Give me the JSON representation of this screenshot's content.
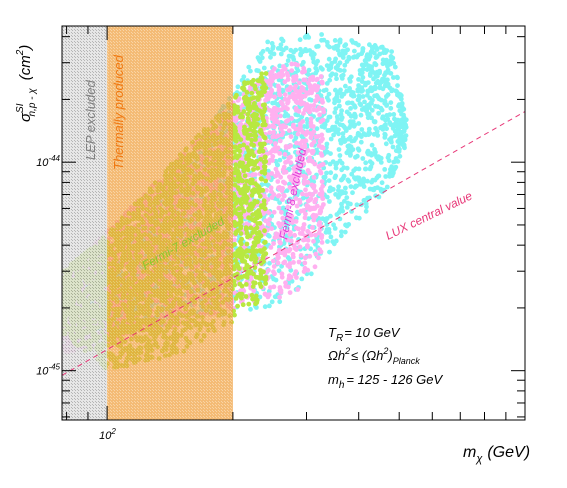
{
  "chart_data": {
    "type": "scatter",
    "title": "",
    "xscale": "log",
    "yscale": "log",
    "xlim": [
      78,
      1000
    ],
    "ylim": [
      5.8e-46,
      4.5e-44
    ],
    "xlabel_main": "m",
    "xlabel_sub": "χ",
    "xlabel_unit": "(GeV)",
    "ylabel_main": "σ",
    "ylabel_sup": "SI",
    "ylabel_sub": "n,p - χ",
    "ylabel_unit": "(cm",
    "ylabel_unit_sup": "2",
    "ylabel_unit_close": ")",
    "x_tick_labels": [
      {
        "value": 100,
        "base": "10",
        "exp": "2"
      }
    ],
    "y_tick_labels": [
      {
        "value": 1e-44,
        "base": "10",
        "exp": "-44"
      },
      {
        "value": 1e-45,
        "base": "10",
        "exp": "-45"
      }
    ],
    "regions": [
      {
        "name": "LEP excluded",
        "x_range": [
          78,
          100
        ],
        "color": "#cfcfcf",
        "text_color": "#808080"
      },
      {
        "name": "Thermally produced",
        "x_range": [
          100,
          200
        ],
        "color": "#f0a040",
        "text_color": "#f07810"
      },
      {
        "name": "Fermi-7 excluded",
        "color": "#b8e840",
        "text_color": "#8ac830"
      },
      {
        "name": "Fermi-8 excluded",
        "color": "#ffb0f0",
        "text_color": "#e040d8"
      }
    ],
    "point_clouds": [
      {
        "color": "#7ff4f4",
        "x_range": [
          78,
          520
        ],
        "upper": [
          [
            78,
            2.5e-45
          ],
          [
            100,
            2.8e-45
          ],
          [
            240,
            3.8e-44
          ],
          [
            280,
            4.2e-44
          ],
          [
            330,
            4.1e-44
          ],
          [
            480,
            3.5e-44
          ],
          [
            520,
            1.6e-44
          ]
        ],
        "lower": [
          [
            78,
            1.8e-45
          ],
          [
            100,
            1.5e-45
          ],
          [
            240,
            2e-45
          ],
          [
            280,
            2.3e-45
          ],
          [
            330,
            3.4e-45
          ],
          [
            480,
            8e-45
          ],
          [
            520,
            1.2e-44
          ]
        ]
      },
      {
        "color": "#ffb0f0",
        "x_range": [
          78,
          330
        ],
        "upper": [
          [
            78,
            2.8e-45
          ],
          [
            240,
            2.8e-44
          ],
          [
            285,
            3e-44
          ],
          [
            330,
            2.6e-44
          ]
        ],
        "lower": [
          [
            78,
            1.2e-45
          ],
          [
            240,
            2.1e-45
          ],
          [
            285,
            2.4e-45
          ],
          [
            330,
            3.3e-45
          ]
        ]
      },
      {
        "color": "#b8e840",
        "x_range": [
          78,
          240
        ],
        "upper": [
          [
            78,
            3e-45
          ],
          [
            100,
            4.5e-45
          ],
          [
            150,
            1.1e-44
          ],
          [
            200,
            2e-44
          ],
          [
            215,
            2.5e-44
          ],
          [
            240,
            2.7e-44
          ]
        ],
        "lower": [
          [
            78,
            1.5e-45
          ],
          [
            100,
            1e-45
          ],
          [
            150,
            1.2e-45
          ],
          [
            200,
            1.7e-45
          ],
          [
            240,
            2.2e-45
          ]
        ]
      }
    ],
    "lux_line": {
      "name": "LUX central value",
      "color": "#e83878",
      "points": [
        [
          78,
          9.5e-46
        ],
        [
          1000,
          1.75e-44
        ]
      ]
    },
    "annotations": [
      {
        "main": "T",
        "sub": "R",
        "rest": "= 10 GeV"
      },
      {
        "main": "Ωh",
        "sup": "2",
        "rest": "≤ (Ωh",
        "sup2": "2",
        "close": ")",
        "sub": "Planck"
      },
      {
        "main": "m",
        "sub": "h",
        "rest": "= 125 - 126 GeV"
      }
    ]
  }
}
